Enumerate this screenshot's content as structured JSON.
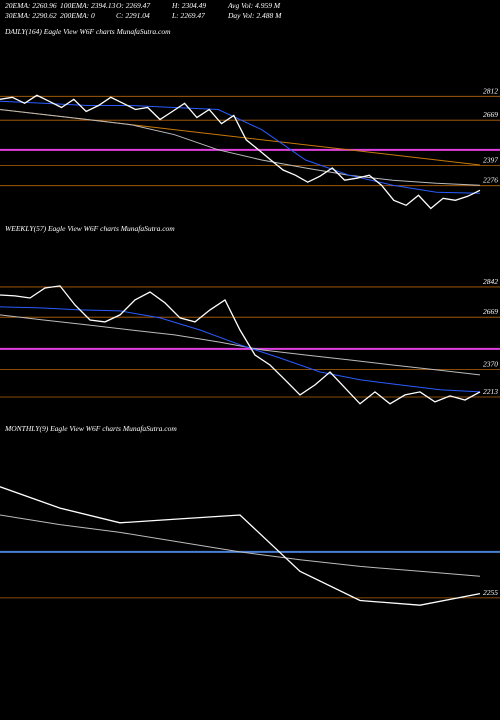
{
  "header": {
    "rows": [
      [
        "20EMA: 2260.96",
        "100EMA: 2394.13",
        "O: 2269.47",
        "H: 2304.49",
        "Avg Vol: 4.959 M"
      ],
      [
        "30EMA: 2290.62",
        "200EMA: 0",
        "C: 2291.04",
        "L: 2269.47",
        "Day Vol: 2.488 M"
      ]
    ]
  },
  "chart_data": [
    {
      "type": "line",
      "title": "DAILY(164) Eagle  View  W6F charts MunafaSutra.com",
      "ylim": [
        2130,
        2970
      ],
      "yticks": [
        2812,
        2669,
        2397,
        2276
      ],
      "reference_lines": [
        {
          "value": 2491,
          "color": "#e040e0"
        }
      ],
      "series": [
        {
          "color": "#c8780a",
          "values": [
            2733,
            2400
          ]
        },
        {
          "color": "#bbbbbb",
          "values": [
            2733,
            2703,
            2673,
            2642,
            2582,
            2491,
            2430,
            2382,
            2339,
            2309,
            2291,
            2279
          ]
        },
        {
          "color": "#2a5cff",
          "values": [
            2782,
            2770,
            2757,
            2757,
            2745,
            2733,
            2612,
            2430,
            2339,
            2279,
            2236,
            2230
          ]
        },
        {
          "color": "#ffffff",
          "values": [
            2794,
            2806,
            2770,
            2818,
            2782,
            2745,
            2794,
            2721,
            2757,
            2806,
            2770,
            2733,
            2745,
            2673,
            2721,
            2770,
            2685,
            2733,
            2648,
            2697,
            2551,
            2491,
            2430,
            2370,
            2339,
            2297,
            2333,
            2382,
            2309,
            2321,
            2339,
            2279,
            2188,
            2158,
            2218,
            2139,
            2200,
            2188,
            2212,
            2248
          ]
        }
      ]
    },
    {
      "type": "line",
      "title": "WEEKLY(57) Eagle  View  W6F charts MunafaSutra.com",
      "ylim": [
        2150,
        2996
      ],
      "yticks": [
        2842,
        2669,
        2370,
        2213
      ],
      "reference_lines": [
        {
          "value": 2488,
          "color": "#e040e0"
        }
      ],
      "series": [
        {
          "color": "#bbbbbb",
          "values": [
            2682,
            2653,
            2625,
            2596,
            2568,
            2528,
            2482,
            2453,
            2425,
            2396,
            2368,
            2339
          ]
        },
        {
          "color": "#2a5cff",
          "values": [
            2728,
            2722,
            2711,
            2705,
            2665,
            2596,
            2511,
            2436,
            2356,
            2311,
            2282,
            2254,
            2242
          ]
        },
        {
          "color": "#ffffff",
          "values": [
            2796,
            2791,
            2779,
            2836,
            2848,
            2739,
            2653,
            2642,
            2682,
            2768,
            2813,
            2751,
            2665,
            2642,
            2711,
            2768,
            2596,
            2453,
            2396,
            2311,
            2225,
            2282,
            2356,
            2265,
            2174,
            2242,
            2174,
            2225,
            2242,
            2185,
            2219,
            2196,
            2242
          ]
        }
      ]
    },
    {
      "type": "line",
      "title": "MONTHLY(9) Eagle  View  W6F charts MunafaSutra.com",
      "ylim": [
        2150,
        3100
      ],
      "yticks": [
        2255
      ],
      "reference_lines": [
        {
          "value": 2537,
          "color": "#4a7fd6"
        }
      ],
      "series": [
        {
          "color": "#bbbbbb",
          "values": [
            2763,
            2704,
            2656,
            2597,
            2537,
            2489,
            2448,
            2418,
            2388
          ]
        },
        {
          "color": "#ffffff",
          "values": [
            2936,
            2805,
            2715,
            2739,
            2763,
            2418,
            2239,
            2210,
            2281
          ]
        }
      ]
    }
  ]
}
